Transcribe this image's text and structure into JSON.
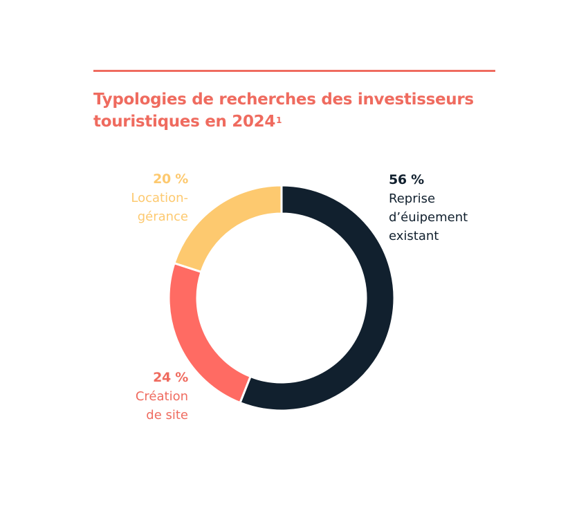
{
  "title": "Typologies de recherches des investisseurs touristiques en 2024",
  "title_sup": "1",
  "colors": {
    "accent": "#ef6b5f",
    "reprise": "#11202e",
    "creation": "#ff6b63",
    "location": "#fdc96f",
    "separator": "#ffffff"
  },
  "chart_data": {
    "type": "pie",
    "variant": "donut",
    "title": "Typologies de recherches des investisseurs touristiques en 2024",
    "unit": "%",
    "slices": [
      {
        "pct_label": "56 %",
        "label": "Reprise\nd’éuipement\nexistant",
        "value": 56,
        "color": "#11202e"
      },
      {
        "pct_label": "24 %",
        "label": "Création\nde site",
        "value": 24,
        "color": "#ff6b63"
      },
      {
        "pct_label": "20 %",
        "label": "Location-\ngérance",
        "value": 20,
        "color": "#fdc96f"
      }
    ]
  }
}
